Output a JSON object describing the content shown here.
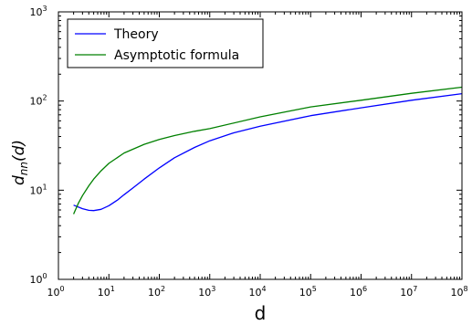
{
  "chart_data": {
    "type": "line",
    "xlabel": "d",
    "ylabel": "d_nn(d)",
    "x_scale": "log",
    "y_scale": "log",
    "xlim": [
      1,
      100000000
    ],
    "ylim": [
      1,
      1000
    ],
    "x_ticks": [
      1,
      10,
      100,
      1000,
      10000,
      100000,
      1000000,
      10000000,
      100000000
    ],
    "x_tick_labels": [
      {
        "base": "10",
        "exp": "0"
      },
      {
        "base": "10",
        "exp": "1"
      },
      {
        "base": "10",
        "exp": "2"
      },
      {
        "base": "10",
        "exp": "3"
      },
      {
        "base": "10",
        "exp": "4"
      },
      {
        "base": "10",
        "exp": "5"
      },
      {
        "base": "10",
        "exp": "6"
      },
      {
        "base": "10",
        "exp": "7"
      },
      {
        "base": "10",
        "exp": "8"
      }
    ],
    "y_ticks": [
      1,
      10,
      100,
      1000
    ],
    "y_tick_labels": [
      {
        "base": "10",
        "exp": "0"
      },
      {
        "base": "10",
        "exp": "1"
      },
      {
        "base": "10",
        "exp": "2"
      },
      {
        "base": "10",
        "exp": "3"
      }
    ],
    "grid": false,
    "legend_position": "top-left",
    "series": [
      {
        "name": "Theory",
        "color": "#0000ff",
        "x": [
          2,
          3,
          4,
          5,
          7,
          10,
          15,
          20,
          30,
          50,
          100,
          200,
          500,
          1000,
          3000,
          10000,
          100000,
          1000000,
          10000000,
          100000000
        ],
        "y": [
          6.8,
          6.2,
          5.95,
          5.9,
          6.1,
          6.7,
          7.8,
          8.9,
          10.6,
          13.3,
          17.8,
          23.1,
          30.2,
          35.8,
          44.0,
          52.2,
          68.5,
          84.0,
          102,
          121
        ]
      },
      {
        "name": "Asymptotic formula",
        "color": "#008000",
        "x": [
          2,
          2.5,
          3,
          4,
          5,
          7,
          10,
          20,
          50,
          100,
          200,
          500,
          1000,
          10000,
          100000,
          1000000,
          10000000,
          100000000
        ],
        "y": [
          5.4,
          7.2,
          8.7,
          11.2,
          13.3,
          16.5,
          20.0,
          26.1,
          32.7,
          37.1,
          41.0,
          45.8,
          49.0,
          66.5,
          86.0,
          102,
          122,
          143
        ]
      }
    ]
  }
}
